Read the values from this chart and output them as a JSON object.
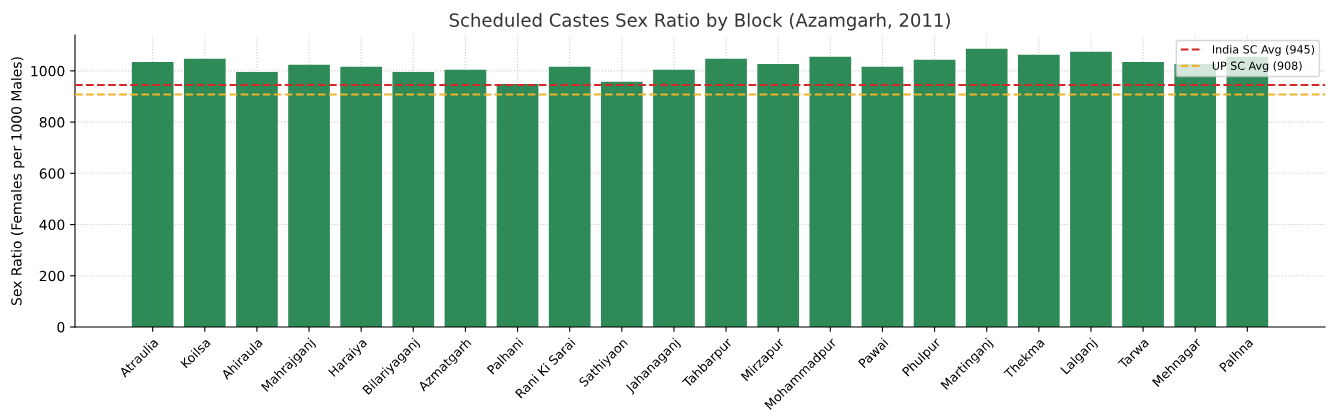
{
  "chart_data": {
    "type": "bar",
    "title": "Scheduled Castes Sex Ratio by Block (Azamgarh, 2011)",
    "ylabel": "Sex Ratio (Females per 1000 Males)",
    "categories": [
      "Atraulia",
      "Koilsa",
      "Ahiraula",
      "Mahrajganj",
      "Haraiya",
      "Bilariyaganj",
      "Azmatgarh",
      "Palhani",
      "Rani Ki Sarai",
      "Sathiyaon",
      "Jahanaganj",
      "Tahbarpur",
      "Mirzapur",
      "Mohammadpur",
      "Pawai",
      "Phulpur",
      "Martinganj",
      "Thekma",
      "Lalganj",
      "Tarwa",
      "Mehnagar",
      "Palhna"
    ],
    "values": [
      1035,
      1047,
      996,
      1024,
      1016,
      996,
      1004,
      949,
      1016,
      957,
      1004,
      1047,
      1027,
      1055,
      1016,
      1043,
      1086,
      1063,
      1075,
      1035,
      1027,
      1055
    ],
    "color": "#2e8b57",
    "ylim": [
      0,
      1140
    ],
    "yticks": [
      0,
      200,
      400,
      600,
      800,
      1000
    ],
    "ref_lines": [
      {
        "axis": "y",
        "value": 945,
        "label": "India SC Avg (945)",
        "color": "#d62728",
        "line_style": "dashed"
      },
      {
        "axis": "y",
        "value": 908,
        "label": "UP SC Avg (908)",
        "color": "#f0b428",
        "line_style": "dashed"
      }
    ],
    "grid": true,
    "legend": "top right"
  }
}
